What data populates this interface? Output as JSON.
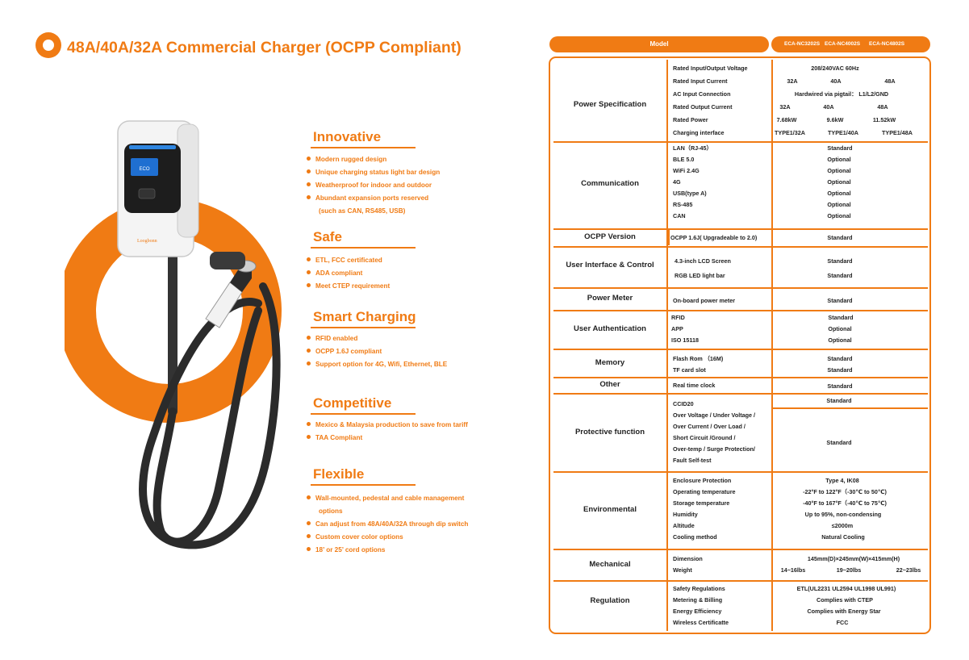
{
  "title": "48A/40A/32A Commercial Charger (OCPP Compliant)",
  "product": {
    "brand_label": "Loogbonn",
    "screen_text": "ECO"
  },
  "features": [
    {
      "title": "Innovative",
      "bullets": [
        "Modern rugged design",
        "Unique charging status light bar design",
        "Weatherproof for indoor and outdoor",
        "Abundant expansion ports reserved",
        "(such as CAN, RS485, USB)"
      ]
    },
    {
      "title": "Safe",
      "bullets": [
        "ETL, FCC certificated",
        "ADA compliant",
        "Meet CTEP requirement"
      ]
    },
    {
      "title": "Smart Charging",
      "bullets": [
        "RFID enabled",
        "OCPP 1.6J compliant",
        "Support option for 4G, Wifi, Ethernet, BLE"
      ]
    },
    {
      "title": "Competitive",
      "bullets": [
        "Mexico & Malaysia production to save from tariff",
        "TAA Compliant"
      ]
    },
    {
      "title": "Flexible",
      "bullets": [
        "Wall-mounted, pedestal and cable management",
        "options",
        "Can adjust from 48A/40A/32A through dip switch",
        "Custom cover color options",
        "18’ or 25’ cord options"
      ]
    }
  ],
  "spec_header": {
    "model_label": "Model",
    "models": [
      "ECA-NC3202S",
      "ECA-NC4002S",
      "ECA-NC4802S"
    ]
  },
  "power": {
    "label": "Power Specification",
    "items": [
      "Rated Input/Output Voltage",
      "Rated Input Current",
      "AC Input Connection",
      "Rated Output Current",
      "Rated Power",
      "Charging interface"
    ],
    "voltage": "208/240VAC 60Hz",
    "input_current": [
      "32A",
      "40A",
      "48A"
    ],
    "ac_input": "Hardwired via pigtail： L1/L2/GND",
    "output_current": [
      "32A",
      "40A",
      "48A"
    ],
    "rated_power": [
      "7.68kW",
      "9.6kW",
      "11.52kW"
    ],
    "interface": [
      "TYPE1/32A",
      "TYPE1/40A",
      "TYPE1/48A"
    ]
  },
  "communication": {
    "label": "Communication",
    "items": [
      "LAN（RJ-45）",
      "BLE 5.0",
      "WiFi 2.4G",
      "4G",
      "USB(type A)",
      "RS-485",
      "CAN"
    ],
    "values": [
      "Standard",
      "Optional",
      "Optional",
      "Optional",
      "Optional",
      "Optional",
      "Optional"
    ]
  },
  "ocpp": {
    "label": "OCPP Version",
    "item": "OCPP 1.6J( Upgradeable to 2.0)",
    "value": "Standard"
  },
  "ui": {
    "label": "User Interface & Control",
    "items": [
      "4.3-inch LCD Screen",
      "RGB LED light bar"
    ],
    "values": [
      "Standard",
      "Standard"
    ]
  },
  "meter": {
    "label": "Power Meter",
    "item": "On-board power meter",
    "value": "Standard"
  },
  "auth": {
    "label": "User Authentication",
    "items": [
      "RFID",
      "APP",
      "ISO 15118"
    ],
    "values": [
      "Standard",
      "Optional",
      "Optional"
    ]
  },
  "memory": {
    "label": "Memory",
    "items": [
      "Flash Rom （16M)",
      "TF card slot"
    ],
    "values": [
      "Standard",
      "Standard"
    ]
  },
  "other": {
    "label": "Other",
    "item": "Real time clock",
    "value": "Standard"
  },
  "protective": {
    "label": "Protective function",
    "items": [
      "CCID20",
      "Over Voltage / Under Voltage /",
      "Over Current / Over Load /",
      "Short Circuit /Ground /",
      "Over-temp / Surge Protection/",
      "Fault Self-test"
    ],
    "values": [
      "Standard",
      "Standard"
    ]
  },
  "environmental": {
    "label": "Environmental",
    "items": [
      "Enclosure Protection",
      "Operating temperature",
      "Storage temperature",
      "Humidity",
      "Altitude",
      "Cooling method"
    ],
    "values": [
      "Type 4, IK08",
      "-22°F to 122°F（-30℃ to 50℃)",
      "-40°F to 167°F（-40℃ to 75℃)",
      "Up to 95%, non-condensing",
      "≤2000m",
      "Natural Cooling"
    ]
  },
  "mechanical": {
    "label": "Mechanical",
    "items": [
      "Dimension",
      "Weight"
    ],
    "dimension": "145mm(D)×245mm(W)×415mm(H)",
    "weights": [
      "14~16lbs",
      "19~20lbs",
      "22~23lbs"
    ]
  },
  "regulation": {
    "label": "Regulation",
    "items": [
      "Safety Regulations",
      "Metering & Billing",
      "Energy Efficiency",
      "Wireless Certificatte"
    ],
    "values": [
      "ETL(UL2231 UL2594 UL1998 UL991)",
      "Complies with CTEP",
      "Complies with Energy Star",
      "FCC"
    ]
  },
  "colors": {
    "accent": "#f07b14",
    "text": "#222222",
    "charger_body": "#f4f4f4",
    "charger_panel": "#1d1d1d",
    "light_bar": "#2f86e0",
    "cable": "#2b2b2b"
  }
}
